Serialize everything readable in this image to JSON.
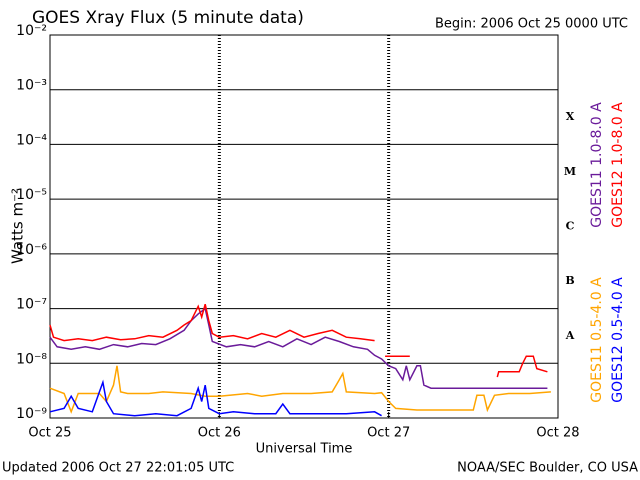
{
  "chart_data": {
    "type": "line",
    "title": "GOES Xray Flux (5 minute data)",
    "subtitle": "Begin:  2006 Oct 25 0000 UTC",
    "y_label": "Watts m⁻²",
    "x_label": "Universal Time",
    "footer_left": "Updated 2006 Oct 27 22:01:05 UTC",
    "footer_right": "NOAA/SEC Boulder, CO USA",
    "ylog": true,
    "grid": true,
    "ylim": [
      1e-09,
      0.01
    ],
    "yticks": [
      {
        "value": 1e-09,
        "label": "10⁻⁹"
      },
      {
        "value": 1e-08,
        "label": "10⁻⁸"
      },
      {
        "value": 1e-07,
        "label": "10⁻⁷"
      },
      {
        "value": 1e-06,
        "label": "10⁻⁶"
      },
      {
        "value": 1e-05,
        "label": "10⁻⁵"
      },
      {
        "value": 0.0001,
        "label": "10⁻⁴"
      },
      {
        "value": 0.001,
        "label": "10⁻³"
      },
      {
        "value": 0.01,
        "label": "10⁻²"
      }
    ],
    "xlim": [
      0,
      72
    ],
    "xticks": [
      {
        "value": 0,
        "label": "Oct 25"
      },
      {
        "value": 24,
        "label": "Oct 26"
      },
      {
        "value": 48,
        "label": "Oct 27"
      },
      {
        "value": 72,
        "label": "Oct 28"
      }
    ],
    "class_labels": [
      "A",
      "B",
      "C",
      "M",
      "X"
    ],
    "series": [
      {
        "name": "GOES11 1.0-8.0 A",
        "color": "#6a1b9a",
        "x": [
          0,
          1,
          3,
          5,
          7,
          9,
          11,
          13,
          15,
          17,
          19,
          20,
          21,
          22,
          22.5,
          23,
          25,
          27,
          29,
          31,
          33,
          35,
          37,
          39,
          41,
          43,
          45,
          46,
          47,
          48,
          49,
          50,
          50.5,
          51,
          52,
          52.5,
          53,
          54,
          60,
          66,
          70.5
        ],
        "values": [
          3e-08,
          2e-08,
          1.8e-08,
          2e-08,
          1.8e-08,
          2.2e-08,
          2e-08,
          2.3e-08,
          2.2e-08,
          2.8e-08,
          4e-08,
          6e-08,
          8e-08,
          1e-07,
          5e-08,
          2.5e-08,
          2e-08,
          2.2e-08,
          2e-08,
          2.5e-08,
          2e-08,
          2.8e-08,
          2.2e-08,
          3e-08,
          2.5e-08,
          2e-08,
          1.8e-08,
          1.4e-08,
          1.2e-08,
          9e-09,
          8e-09,
          5e-09,
          9e-09,
          5e-09,
          9e-09,
          9e-09,
          4e-09,
          3.5e-09,
          3.5e-09,
          3.5e-09,
          3.5e-09
        ]
      },
      {
        "name": "GOES12 1.0-8.0 A",
        "color": "#ff0000",
        "x": [
          0,
          0.5,
          2,
          4,
          6,
          8,
          10,
          12,
          14,
          16,
          18,
          19,
          20,
          21,
          21.5,
          22,
          22.5,
          23,
          24,
          26,
          28,
          30,
          32,
          34,
          36,
          38,
          40,
          42,
          44,
          46,
          46.5,
          47.5,
          51,
          52,
          63.4,
          63.6,
          66.5,
          67,
          67.5,
          68.5,
          69,
          70.5
        ],
        "values": [
          5e-08,
          3e-08,
          2.6e-08,
          2.8e-08,
          2.6e-08,
          3e-08,
          2.7e-08,
          2.8e-08,
          3.2e-08,
          3e-08,
          4e-08,
          5e-08,
          6e-08,
          1.1e-07,
          7e-08,
          1.2e-07,
          6e-08,
          3.5e-08,
          3e-08,
          3.2e-08,
          2.8e-08,
          3.5e-08,
          3e-08,
          4e-08,
          3e-08,
          3.5e-08,
          4e-08,
          3e-08,
          2.8e-08,
          2.6e-08,
          null,
          1.35e-08,
          1.35e-08,
          null,
          5.6e-09,
          7e-09,
          7e-09,
          1e-08,
          1.35e-08,
          1.35e-08,
          8e-09,
          7e-09
        ]
      },
      {
        "name": "GOES11 0.5-4.0 A",
        "color": "#ffa500",
        "x": [
          0,
          2,
          3,
          4,
          7,
          8,
          9,
          9.5,
          10,
          11,
          14,
          16,
          20,
          22,
          24,
          28,
          30,
          33,
          37,
          40,
          41,
          41.5,
          42,
          46,
          47,
          48,
          49,
          52,
          56,
          60,
          60.5,
          61.5,
          62,
          63,
          65,
          68,
          71
        ],
        "values": [
          3.5e-09,
          2.8e-09,
          1.3e-09,
          2.8e-09,
          2.8e-09,
          2e-09,
          4e-09,
          9e-09,
          3e-09,
          2.8e-09,
          2.8e-09,
          3e-09,
          2.8e-09,
          2.5e-09,
          2.5e-09,
          2.8e-09,
          2.5e-09,
          2.8e-09,
          2.8e-09,
          3e-09,
          5e-09,
          6.5e-09,
          3e-09,
          2.8e-09,
          2.9e-09,
          2e-09,
          1.5e-09,
          1.4e-09,
          1.4e-09,
          1.4e-09,
          2.6e-09,
          2.6e-09,
          1.4e-09,
          2.6e-09,
          2.8e-09,
          2.8e-09,
          3e-09
        ]
      },
      {
        "name": "GOES12 0.5-4.0 A",
        "color": "#0000ff",
        "x": [
          0,
          2,
          3,
          4,
          6,
          7,
          7.5,
          8,
          9,
          12,
          15,
          18,
          20,
          21,
          21.5,
          22,
          22.5,
          24,
          26,
          29,
          32,
          33,
          34,
          38,
          42,
          46,
          47
        ],
        "values": [
          1.3e-09,
          1.5e-09,
          2.5e-09,
          1.5e-09,
          1.3e-09,
          3e-09,
          4.5e-09,
          2e-09,
          1.2e-09,
          1.1e-09,
          1.2e-09,
          1.1e-09,
          1.5e-09,
          3.5e-09,
          2e-09,
          4e-09,
          1.5e-09,
          1.2e-09,
          1.3e-09,
          1.2e-09,
          1.2e-09,
          1.8e-09,
          1.2e-09,
          1.2e-09,
          1.2e-09,
          1.3e-09,
          1.1e-09
        ]
      }
    ]
  }
}
